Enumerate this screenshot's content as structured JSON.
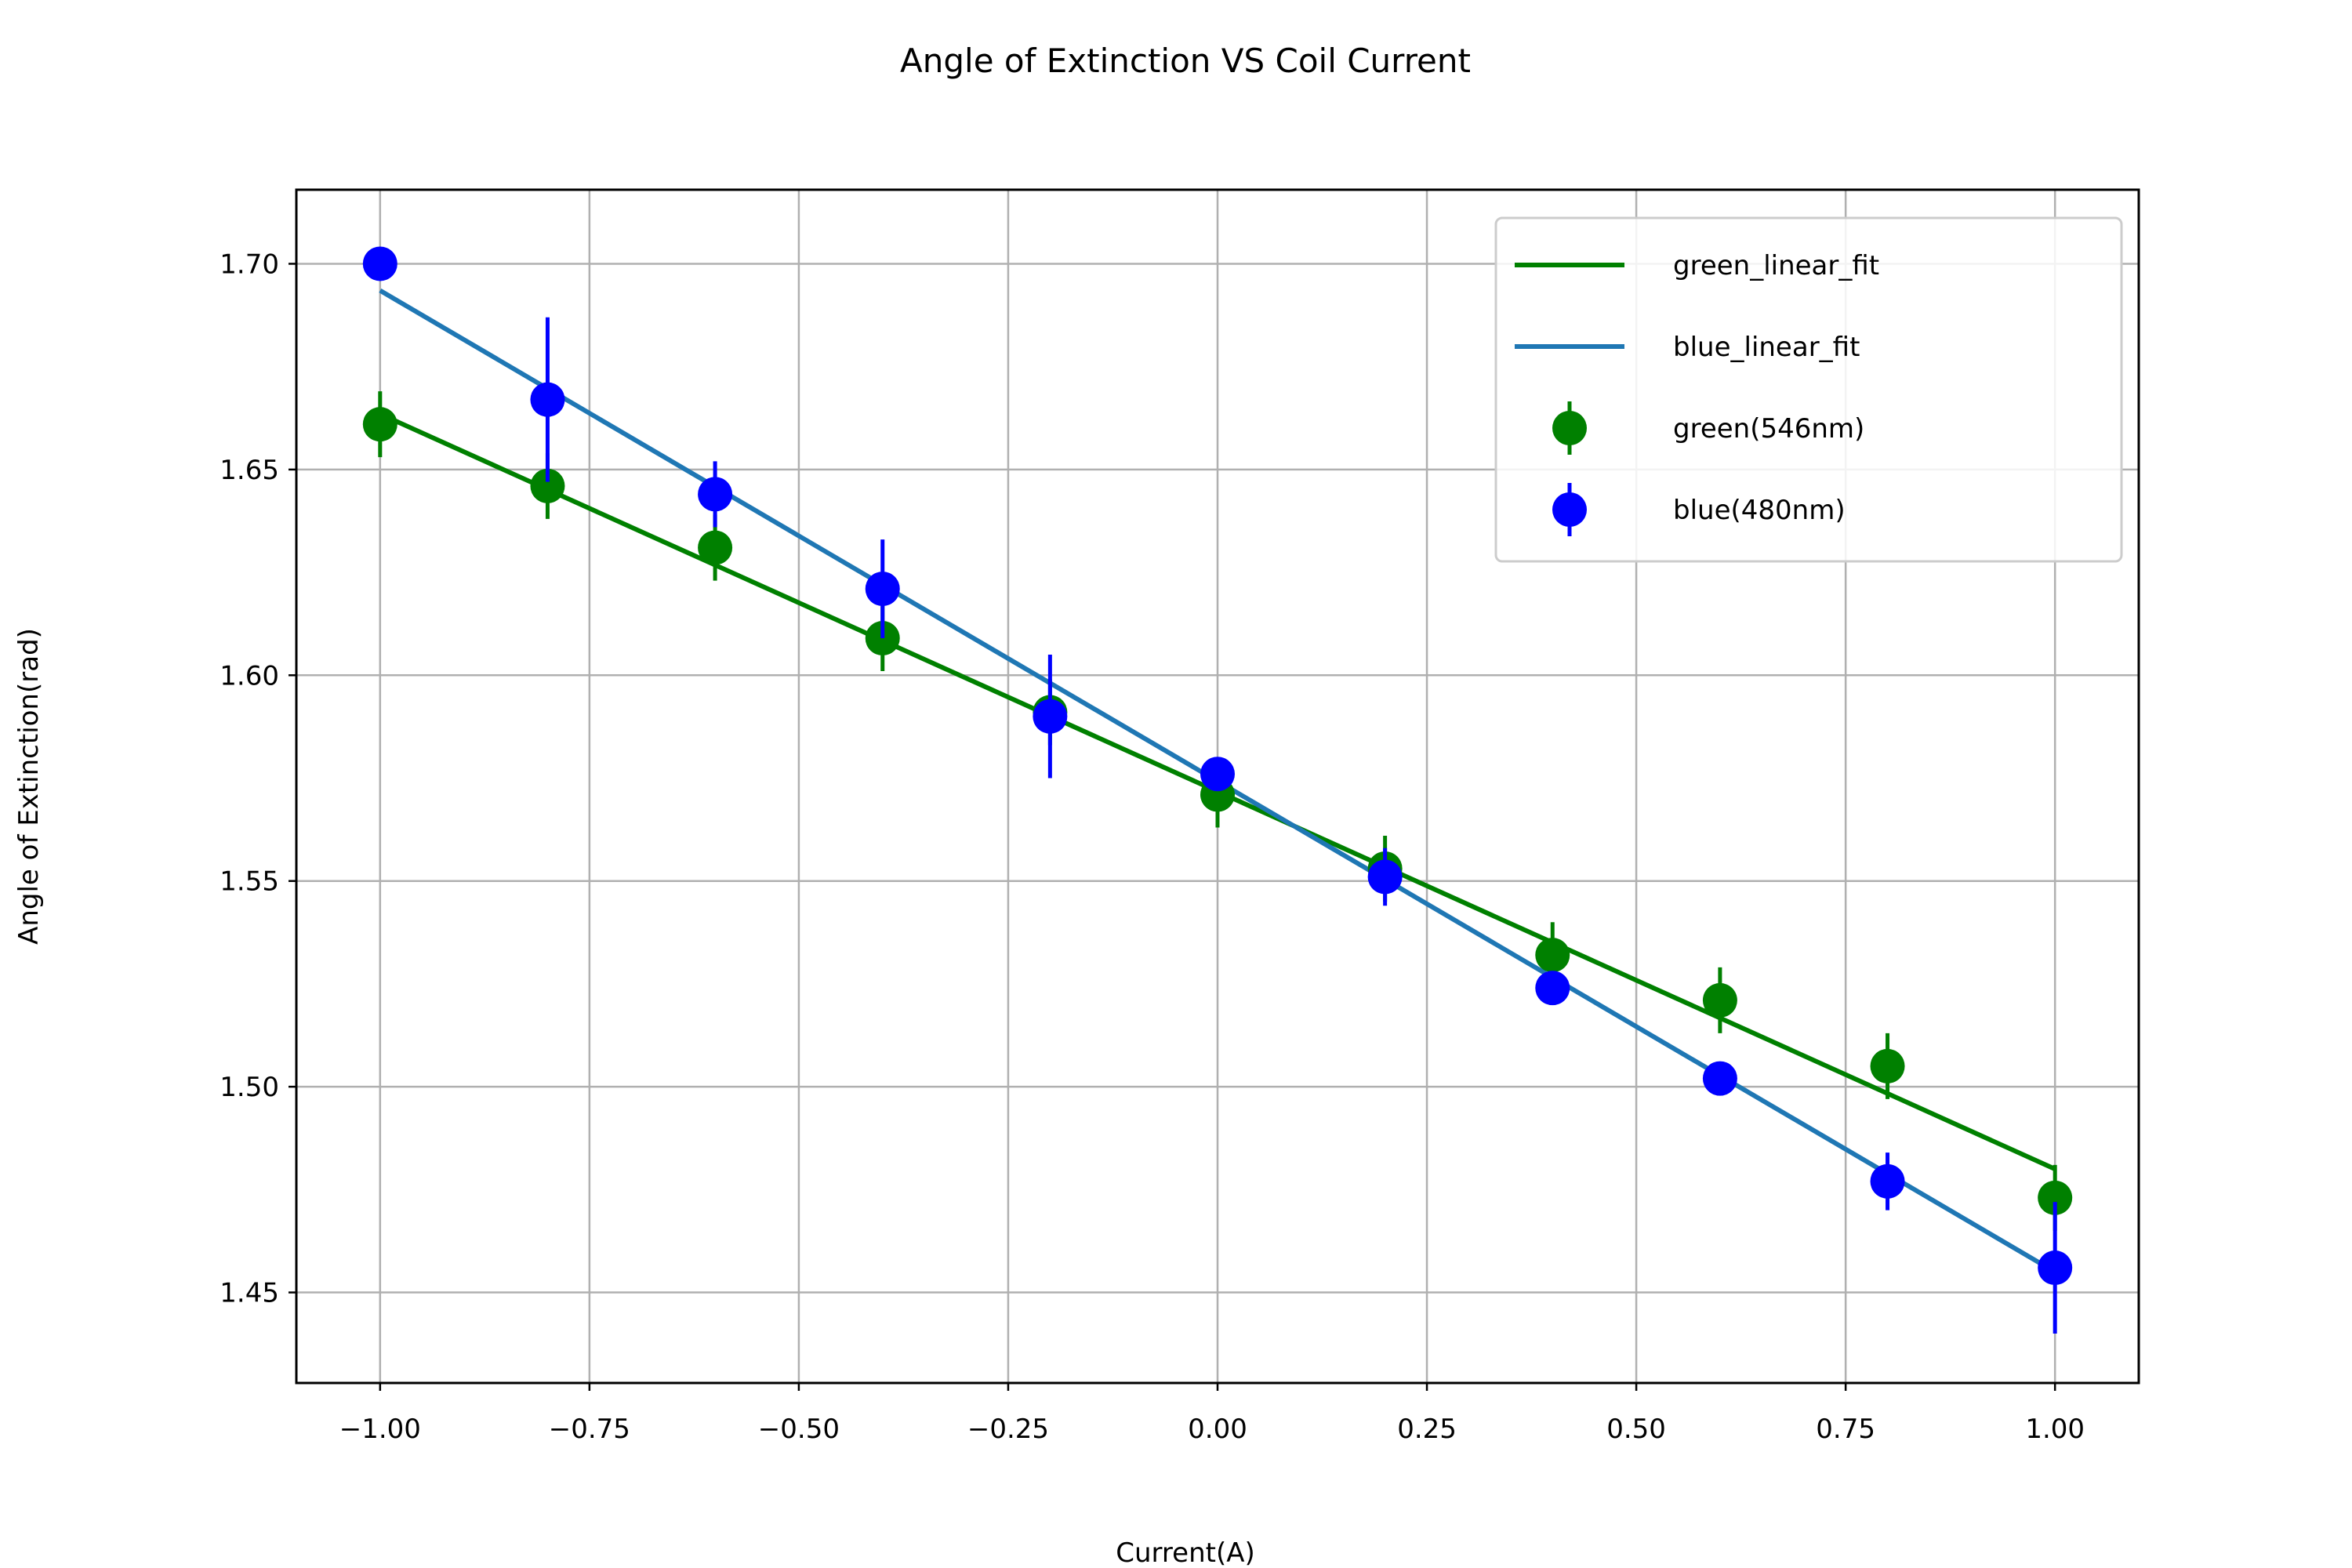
{
  "chart_data": {
    "type": "scatter",
    "title": "Angle of Extinction VS Coil Current",
    "xlabel": "Current(A)",
    "ylabel": "Angle of Extinction(rad)",
    "xlim": [
      -1.1,
      1.1
    ],
    "ylim": [
      1.428,
      1.718
    ],
    "x_ticks": [
      -1.0,
      -0.75,
      -0.5,
      -0.25,
      0.0,
      0.25,
      0.5,
      0.75,
      1.0
    ],
    "x_tick_labels": [
      "−1.00",
      "−0.75",
      "−0.50",
      "−0.25",
      "0.00",
      "0.25",
      "0.50",
      "0.75",
      "1.00"
    ],
    "y_ticks": [
      1.45,
      1.5,
      1.55,
      1.6,
      1.65,
      1.7
    ],
    "y_tick_labels": [
      "1.45",
      "1.50",
      "1.55",
      "1.60",
      "1.65",
      "1.70"
    ],
    "grid": true,
    "legend_position": "top-right",
    "x": [
      -1.0,
      -0.8,
      -0.6,
      -0.4,
      -0.2,
      0.0,
      0.2,
      0.4,
      0.6,
      0.8,
      1.0
    ],
    "series": [
      {
        "name": "green(546nm)",
        "kind": "errorbar",
        "color": "#008000",
        "y": [
          1.661,
          1.646,
          1.631,
          1.609,
          1.591,
          1.571,
          1.553,
          1.532,
          1.521,
          1.505,
          1.473
        ],
        "yerr": [
          0.008,
          0.008,
          0.008,
          0.008,
          0.008,
          0.008,
          0.008,
          0.008,
          0.008,
          0.008,
          0.008
        ]
      },
      {
        "name": "blue(480nm)",
        "kind": "errorbar",
        "color": "#0000ff",
        "y": [
          1.7,
          1.667,
          1.644,
          1.621,
          1.59,
          1.576,
          1.551,
          1.524,
          1.502,
          1.477,
          1.456
        ],
        "yerr": [
          0.003,
          0.02,
          0.008,
          0.012,
          0.015,
          0.004,
          0.007,
          0.004,
          0.004,
          0.007,
          0.016
        ]
      },
      {
        "name": "green_linear_fit",
        "kind": "line",
        "color": "#008000",
        "x": [
          -1.0,
          1.0
        ],
        "y": [
          1.6635,
          1.48
        ]
      },
      {
        "name": "blue_linear_fit",
        "kind": "line",
        "color": "#1f77b4",
        "x": [
          -1.0,
          1.0
        ],
        "y": [
          1.6935,
          1.455
        ]
      }
    ],
    "legend_order": [
      "green_linear_fit",
      "blue_linear_fit",
      "green(546nm)",
      "blue(480nm)"
    ]
  }
}
